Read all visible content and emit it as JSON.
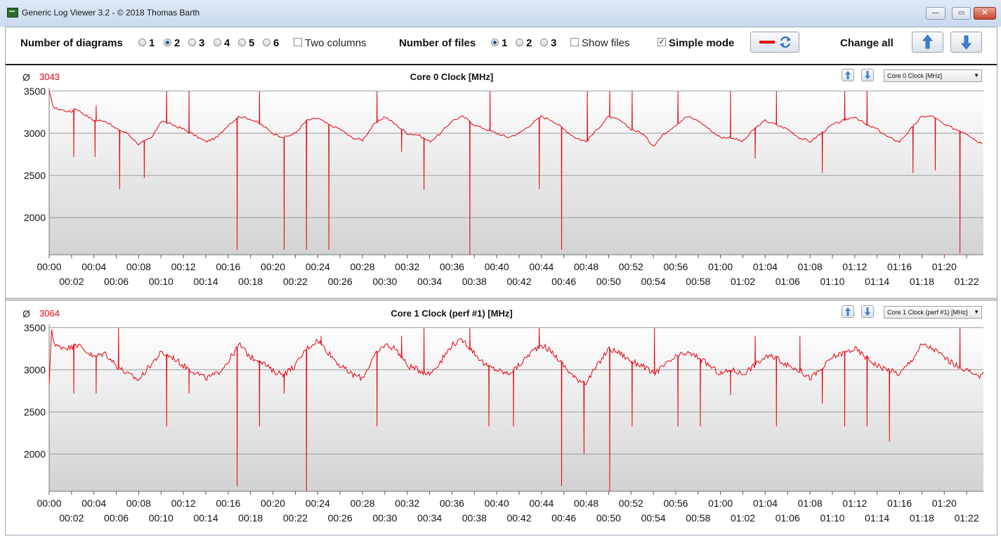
{
  "window": {
    "title": "Generic Log Viewer 3.2 - © 2018 Thomas Barth",
    "minimize": "—",
    "maximize": "▭",
    "close": "✕"
  },
  "toolbar": {
    "diagrams_label": "Number of diagrams",
    "diagram_options": [
      "1",
      "2",
      "3",
      "4",
      "5",
      "6"
    ],
    "diagrams_selected": "2",
    "two_columns_label": "Two columns",
    "two_columns_checked": false,
    "files_label": "Number of files",
    "file_options": [
      "1",
      "2",
      "3"
    ],
    "files_selected": "1",
    "show_files_label": "Show files",
    "show_files_checked": false,
    "simple_mode_label": "Simple mode",
    "simple_mode_checked": true,
    "change_all_label": "Change all"
  },
  "colors": {
    "series": "#e8000d",
    "grid": "#9a9a9a",
    "bg_top": "#ffffff",
    "bg_bottom": "#d2d2d2",
    "accent_blue": "#2f6fc9"
  },
  "icons": {
    "legend_swatch": "line-swatch-icon",
    "refresh": "refresh-icon",
    "up": "arrow-up-icon",
    "down": "arrow-down-icon",
    "dropdown": "chevron-down-icon"
  },
  "chart_data": [
    {
      "type": "line",
      "title": "Core 0 Clock [MHz]",
      "average_symbol": "Ø",
      "average": "3043",
      "selector": "Core 0 Clock [MHz]",
      "ylim": [
        1560,
        3540
      ],
      "yticks": [
        2000,
        2500,
        3000,
        3500
      ],
      "xlim_minutes": [
        0,
        83.5
      ],
      "xticks_upper": [
        "00:00",
        "00:04",
        "00:08",
        "00:12",
        "00:16",
        "00:20",
        "00:24",
        "00:28",
        "00:32",
        "00:36",
        "00:40",
        "00:44",
        "00:48",
        "00:52",
        "00:56",
        "01:00",
        "01:04",
        "01:08",
        "01:12",
        "01:16",
        "01:20"
      ],
      "xticks_lower": [
        "00:02",
        "00:06",
        "00:10",
        "00:14",
        "00:18",
        "00:22",
        "00:26",
        "00:30",
        "00:34",
        "00:38",
        "00:42",
        "00:46",
        "00:50",
        "00:54",
        "00:58",
        "01:02",
        "01:06",
        "01:10",
        "01:14",
        "01:18",
        "01:22"
      ],
      "baseline": [
        [
          0,
          3500
        ],
        [
          0.4,
          3300
        ],
        [
          2,
          3250
        ],
        [
          2.3,
          3300
        ],
        [
          4,
          3150
        ],
        [
          5,
          3150
        ],
        [
          6,
          3050
        ],
        [
          7,
          3000
        ],
        [
          8,
          2870
        ],
        [
          9.2,
          2950
        ],
        [
          10,
          3150
        ],
        [
          11,
          3100
        ],
        [
          12,
          3050
        ],
        [
          14,
          2900
        ],
        [
          15,
          2950
        ],
        [
          16,
          3100
        ],
        [
          17,
          3200
        ],
        [
          18,
          3170
        ],
        [
          19,
          3100
        ],
        [
          20,
          3000
        ],
        [
          21,
          2950
        ],
        [
          22,
          3000
        ],
        [
          23,
          3150
        ],
        [
          24,
          3180
        ],
        [
          25,
          3100
        ],
        [
          26,
          3050
        ],
        [
          27,
          2950
        ],
        [
          28,
          2920
        ],
        [
          29,
          3100
        ],
        [
          30,
          3200
        ],
        [
          31,
          3100
        ],
        [
          32,
          3000
        ],
        [
          33,
          2980
        ],
        [
          34,
          2900
        ],
        [
          35,
          3000
        ],
        [
          36,
          3150
        ],
        [
          37,
          3200
        ],
        [
          38,
          3100
        ],
        [
          39,
          3050
        ],
        [
          40,
          3000
        ],
        [
          41,
          2950
        ],
        [
          42,
          3000
        ],
        [
          43,
          3100
        ],
        [
          44,
          3200
        ],
        [
          45,
          3150
        ],
        [
          46,
          3050
        ],
        [
          47,
          2950
        ],
        [
          48,
          2900
        ],
        [
          49,
          3050
        ],
        [
          50,
          3200
        ],
        [
          51,
          3150
        ],
        [
          52,
          3050
        ],
        [
          53,
          3000
        ],
        [
          54,
          2850
        ],
        [
          55,
          3000
        ],
        [
          56,
          3100
        ],
        [
          57,
          3200
        ],
        [
          58,
          3150
        ],
        [
          59,
          3050
        ],
        [
          60,
          2950
        ],
        [
          61,
          2950
        ],
        [
          62,
          2900
        ],
        [
          63,
          3050
        ],
        [
          64,
          3150
        ],
        [
          65,
          3100
        ],
        [
          66,
          3050
        ],
        [
          67,
          2950
        ],
        [
          68,
          2900
        ],
        [
          69,
          3000
        ],
        [
          70,
          3100
        ],
        [
          71,
          3150
        ],
        [
          72,
          3200
        ],
        [
          73,
          3100
        ],
        [
          74,
          3050
        ],
        [
          75,
          2950
        ],
        [
          76,
          2900
        ],
        [
          77,
          3050
        ],
        [
          78,
          3200
        ],
        [
          79,
          3200
        ],
        [
          80,
          3100
        ],
        [
          81,
          3050
        ],
        [
          82,
          3000
        ],
        [
          83,
          2900
        ],
        [
          83.5,
          2880
        ]
      ],
      "spikes": [
        [
          2.2,
          2720
        ],
        [
          4.1,
          2720
        ],
        [
          4.2,
          3330
        ],
        [
          6.3,
          2340
        ],
        [
          8.5,
          2470
        ],
        [
          10.5,
          3500
        ],
        [
          12.5,
          3500
        ],
        [
          16.8,
          1620
        ],
        [
          18.8,
          3500
        ],
        [
          21,
          1620
        ],
        [
          23,
          1620
        ],
        [
          25,
          1620
        ],
        [
          29.3,
          3500
        ],
        [
          31.5,
          2780
        ],
        [
          33.5,
          2330
        ],
        [
          37.6,
          1560
        ],
        [
          39.4,
          3500
        ],
        [
          43.8,
          2340
        ],
        [
          45.8,
          1620
        ],
        [
          48.1,
          3500
        ],
        [
          50.1,
          3500
        ],
        [
          52.1,
          3500
        ],
        [
          56.2,
          3500
        ],
        [
          60.9,
          3500
        ],
        [
          63.1,
          2700
        ],
        [
          65,
          3500
        ],
        [
          69.1,
          2530
        ],
        [
          71.1,
          3500
        ],
        [
          73.1,
          3500
        ],
        [
          77.2,
          2530
        ],
        [
          79.2,
          2560
        ],
        [
          81.4,
          1580
        ]
      ]
    },
    {
      "type": "line",
      "title": "Core 1 Clock (perf #1) [MHz]",
      "average_symbol": "Ø",
      "average": "3064",
      "selector": "Core 1 Clock (perf #1) [MHz]",
      "ylim": [
        1560,
        3540
      ],
      "yticks": [
        2000,
        2500,
        3000,
        3500
      ],
      "xlim_minutes": [
        0,
        83.5
      ],
      "xticks_upper": [
        "00:00",
        "00:04",
        "00:08",
        "00:12",
        "00:16",
        "00:20",
        "00:24",
        "00:28",
        "00:32",
        "00:36",
        "00:40",
        "00:44",
        "00:48",
        "00:52",
        "00:56",
        "01:00",
        "01:04",
        "01:08",
        "01:12",
        "01:16",
        "01:20"
      ],
      "xticks_lower": [
        "00:02",
        "00:06",
        "00:10",
        "00:14",
        "00:18",
        "00:22",
        "00:26",
        "00:30",
        "00:34",
        "00:38",
        "00:42",
        "00:46",
        "00:50",
        "00:54",
        "00:58",
        "01:02",
        "01:06",
        "01:10",
        "01:14",
        "01:18",
        "01:22"
      ],
      "baseline": [
        [
          0,
          2800
        ],
        [
          0.2,
          3500
        ],
        [
          0.5,
          3280
        ],
        [
          2,
          3260
        ],
        [
          2.3,
          3320
        ],
        [
          4,
          3150
        ],
        [
          5,
          3200
        ],
        [
          6,
          3050
        ],
        [
          7,
          2950
        ],
        [
          8,
          2880
        ],
        [
          9,
          3050
        ],
        [
          10,
          3200
        ],
        [
          11,
          3150
        ],
        [
          12,
          3050
        ],
        [
          14,
          2900
        ],
        [
          15,
          2950
        ],
        [
          16,
          3100
        ],
        [
          17,
          3300
        ],
        [
          18,
          3150
        ],
        [
          19,
          3100
        ],
        [
          20,
          2980
        ],
        [
          21,
          2950
        ],
        [
          22,
          3050
        ],
        [
          23,
          3250
        ],
        [
          24,
          3350
        ],
        [
          25,
          3200
        ],
        [
          26,
          3050
        ],
        [
          27,
          2950
        ],
        [
          28,
          2900
        ],
        [
          29,
          3150
        ],
        [
          30,
          3300
        ],
        [
          31,
          3250
        ],
        [
          32,
          3050
        ],
        [
          33,
          3000
        ],
        [
          34,
          2950
        ],
        [
          35,
          3100
        ],
        [
          36,
          3300
        ],
        [
          37,
          3350
        ],
        [
          38,
          3200
        ],
        [
          39,
          3050
        ],
        [
          40,
          3000
        ],
        [
          41,
          2950
        ],
        [
          42,
          3050
        ],
        [
          43,
          3200
        ],
        [
          44,
          3300
        ],
        [
          45,
          3200
        ],
        [
          46,
          3050
        ],
        [
          47,
          2900
        ],
        [
          48,
          2850
        ],
        [
          49,
          3050
        ],
        [
          50,
          3250
        ],
        [
          51,
          3200
        ],
        [
          52,
          3100
        ],
        [
          53,
          3050
        ],
        [
          54,
          2950
        ],
        [
          55,
          3050
        ],
        [
          56,
          3150
        ],
        [
          57,
          3200
        ],
        [
          58,
          3150
        ],
        [
          59,
          3050
        ],
        [
          60,
          2950
        ],
        [
          61,
          3000
        ],
        [
          62,
          2950
        ],
        [
          63,
          3050
        ],
        [
          64,
          3150
        ],
        [
          65,
          3150
        ],
        [
          66,
          3050
        ],
        [
          67,
          3000
        ],
        [
          68,
          2900
        ],
        [
          69,
          3000
        ],
        [
          70,
          3150
        ],
        [
          71,
          3200
        ],
        [
          72,
          3250
        ],
        [
          73,
          3150
        ],
        [
          74,
          3050
        ],
        [
          75,
          3000
        ],
        [
          76,
          2950
        ],
        [
          77,
          3100
        ],
        [
          78,
          3300
        ],
        [
          79,
          3250
        ],
        [
          80,
          3150
        ],
        [
          81,
          3050
        ],
        [
          82,
          3000
        ],
        [
          83,
          2900
        ],
        [
          83.5,
          3000
        ]
      ],
      "spikes": [
        [
          2.2,
          2720
        ],
        [
          4.2,
          2720
        ],
        [
          6.2,
          3500
        ],
        [
          10.5,
          2330
        ],
        [
          12.5,
          2720
        ],
        [
          16.8,
          1620
        ],
        [
          18.8,
          2330
        ],
        [
          21,
          2720
        ],
        [
          23,
          1560
        ],
        [
          24.3,
          3400
        ],
        [
          29.3,
          2330
        ],
        [
          31.5,
          3400
        ],
        [
          33.5,
          3500
        ],
        [
          37.6,
          3500
        ],
        [
          39.3,
          2330
        ],
        [
          41.5,
          2330
        ],
        [
          43.8,
          3500
        ],
        [
          45.8,
          1620
        ],
        [
          47.8,
          2000
        ],
        [
          50.1,
          1560
        ],
        [
          52.1,
          2330
        ],
        [
          54.1,
          3500
        ],
        [
          56.2,
          2330
        ],
        [
          58.2,
          2330
        ],
        [
          60.9,
          2700
        ],
        [
          63.1,
          3400
        ],
        [
          65,
          2330
        ],
        [
          67.1,
          3400
        ],
        [
          69.1,
          2600
        ],
        [
          71.1,
          2330
        ],
        [
          73.1,
          2330
        ],
        [
          75.1,
          2150
        ],
        [
          81.4,
          3500
        ]
      ]
    }
  ]
}
